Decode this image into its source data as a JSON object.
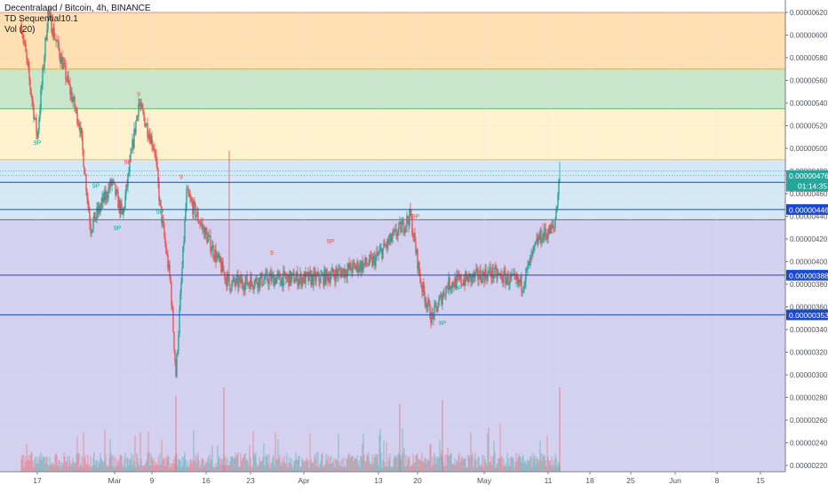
{
  "header": {
    "symbol_line": "Decentraland / Bitcoin, 4h, BINANCE",
    "indicator_1": "TD Sequential10.1",
    "indicator_2": "Vol (20)"
  },
  "chart_data": {
    "type": "candlestick",
    "title": "Decentraland / Bitcoin, 4h, BINANCE",
    "xlabel": "",
    "ylabel": "",
    "ylim": [
      2.15e-06,
      6.23e-06
    ],
    "y_tick_labels": [
      "0.00000620",
      "0.00000600",
      "0.00000580",
      "0.00000560",
      "0.00000540",
      "0.00000520",
      "0.00000500",
      "0.00000480",
      "0.00000460",
      "0.00000440",
      "0.00000420",
      "0.00000400",
      "0.00000380",
      "0.00000360",
      "0.00000340",
      "0.00000320",
      "0.00000300",
      "0.00000280",
      "0.00000260",
      "0.00000240",
      "0.00000220"
    ],
    "x_tick_labels": [
      "17",
      "Mar",
      "9",
      "16",
      "23",
      "Apr",
      "13",
      "20",
      "May",
      "11",
      "18",
      "25",
      "Jun",
      "8",
      "15"
    ],
    "price_path_key_points": [
      {
        "date": "Feb 14",
        "price": 6.1e-06
      },
      {
        "date": "Feb 17",
        "price": 5.1e-06
      },
      {
        "date": "Feb 19",
        "price": 6.2e-06
      },
      {
        "date": "Feb 22",
        "price": 5.7e-06
      },
      {
        "date": "Feb 25",
        "price": 5.2e-06
      },
      {
        "date": "Feb 27",
        "price": 4.3e-06
      },
      {
        "date": "Mar 2",
        "price": 4.7e-06
      },
      {
        "date": "Mar 4",
        "price": 4.4e-06
      },
      {
        "date": "Mar 7",
        "price": 5.4e-06
      },
      {
        "date": "Mar 10",
        "price": 5e-06
      },
      {
        "date": "Mar 11",
        "price": 4.5e-06
      },
      {
        "date": "Mar 13",
        "price": 3.8e-06
      },
      {
        "date": "Mar 14",
        "price": 3e-06
      },
      {
        "date": "Mar 16",
        "price": 4.6e-06
      },
      {
        "date": "Mar 20",
        "price": 4.2e-06
      },
      {
        "date": "Mar 24",
        "price": 3.8e-06
      },
      {
        "date": "Apr 1",
        "price": 3.85e-06
      },
      {
        "date": "Apr 10",
        "price": 3.85e-06
      },
      {
        "date": "Apr 20",
        "price": 4e-06
      },
      {
        "date": "Apr 27",
        "price": 4.4e-06
      },
      {
        "date": "Apr 29",
        "price": 3.8e-06
      },
      {
        "date": "May 1",
        "price": 3.5e-06
      },
      {
        "date": "May 4",
        "price": 3.8e-06
      },
      {
        "date": "May 12",
        "price": 3.9e-06
      },
      {
        "date": "May 18",
        "price": 3.8e-06
      },
      {
        "date": "May 21",
        "price": 4.2e-06
      },
      {
        "date": "May 24",
        "price": 4.3e-06
      },
      {
        "date": "May 25",
        "price": 4.76e-06
      }
    ],
    "volume_spikes": [
      {
        "date": "Mar 14",
        "relative": 0.9
      },
      {
        "date": "Mar 23",
        "relative": 1.0
      },
      {
        "date": "Apr 25",
        "relative": 0.8
      },
      {
        "date": "May 3",
        "relative": 0.85
      },
      {
        "date": "May 25",
        "relative": 1.0
      }
    ],
    "zones": [
      {
        "from": 5.7e-06,
        "to": 6.2e-06,
        "color": "#ffe0b2"
      },
      {
        "from": 5.35e-06,
        "to": 5.7e-06,
        "color": "#c8e6c9"
      },
      {
        "from": 4.9e-06,
        "to": 5.35e-06,
        "color": "#fff3cf"
      },
      {
        "from": 4.37e-06,
        "to": 4.9e-06,
        "color": "#d4e8f5"
      },
      {
        "from": 2.15e-06,
        "to": 4.37e-06,
        "color": "#d3d0f0"
      }
    ],
    "horizontal_lines": [
      {
        "value": 4.7e-06,
        "label": "0.00000470",
        "color": "#1848cc"
      },
      {
        "value": 4.46e-06,
        "label": "0.00000446",
        "color": "#1848cc"
      },
      {
        "value": 3.88e-06,
        "label": "0.00000388",
        "color": "#1848cc"
      },
      {
        "value": 3.53e-06,
        "label": "0.00000353",
        "color": "#1848cc"
      }
    ],
    "current_price": {
      "value": 4.76e-06,
      "label": "0.00000476",
      "countdown": "01:14:35",
      "color": "#26a69a"
    },
    "td_sequential_marks": [
      {
        "date": "Feb 17",
        "price": 5.03e-06,
        "text": "9P",
        "color": "#26a69a"
      },
      {
        "date": "Feb 28",
        "price": 4.65e-06,
        "text": "9P",
        "color": "#26a69a"
      },
      {
        "date": "Mar 3",
        "price": 4.28e-06,
        "text": "9P",
        "color": "#26a69a"
      },
      {
        "date": "Mar 5",
        "price": 4.86e-06,
        "text": "9P",
        "color": "#ef5350"
      },
      {
        "date": "Mar 7",
        "price": 5.46e-06,
        "text": "9",
        "color": "#ef5350"
      },
      {
        "date": "Mar 11",
        "price": 4.42e-06,
        "text": "9P",
        "color": "#26a69a"
      },
      {
        "date": "Mar 15",
        "price": 4.73e-06,
        "text": "9",
        "color": "#ef5350"
      },
      {
        "date": "Mar 27",
        "price": 3.75e-06,
        "text": "9P",
        "color": "#26a69a"
      },
      {
        "date": "Apr 1",
        "price": 4.06e-06,
        "text": "9",
        "color": "#ef5350"
      },
      {
        "date": "Apr 3",
        "price": 3.78e-06,
        "text": "9P",
        "color": "#26a69a"
      },
      {
        "date": "Apr 12",
        "price": 4.16e-06,
        "text": "9P",
        "color": "#ef5350"
      },
      {
        "date": "Apr 28",
        "price": 4.38e-06,
        "text": "9P",
        "color": "#ef5350"
      },
      {
        "date": "May 3",
        "price": 3.44e-06,
        "text": "9P",
        "color": "#26a69a"
      },
      {
        "date": "May 6",
        "price": 3.75e-06,
        "text": "9P",
        "color": "#26a69a"
      },
      {
        "date": "May 17",
        "price": 3.78e-06,
        "text": "9",
        "color": "#26a69a"
      },
      {
        "date": "May 22",
        "price": 4.3e-06,
        "text": "9",
        "color": "#ef5350"
      }
    ],
    "colors": {
      "up": "#26a69a",
      "down": "#ef5350",
      "grid": "#e1e3ea",
      "axis_text": "#50535e",
      "axis_line": "#787b86"
    }
  }
}
